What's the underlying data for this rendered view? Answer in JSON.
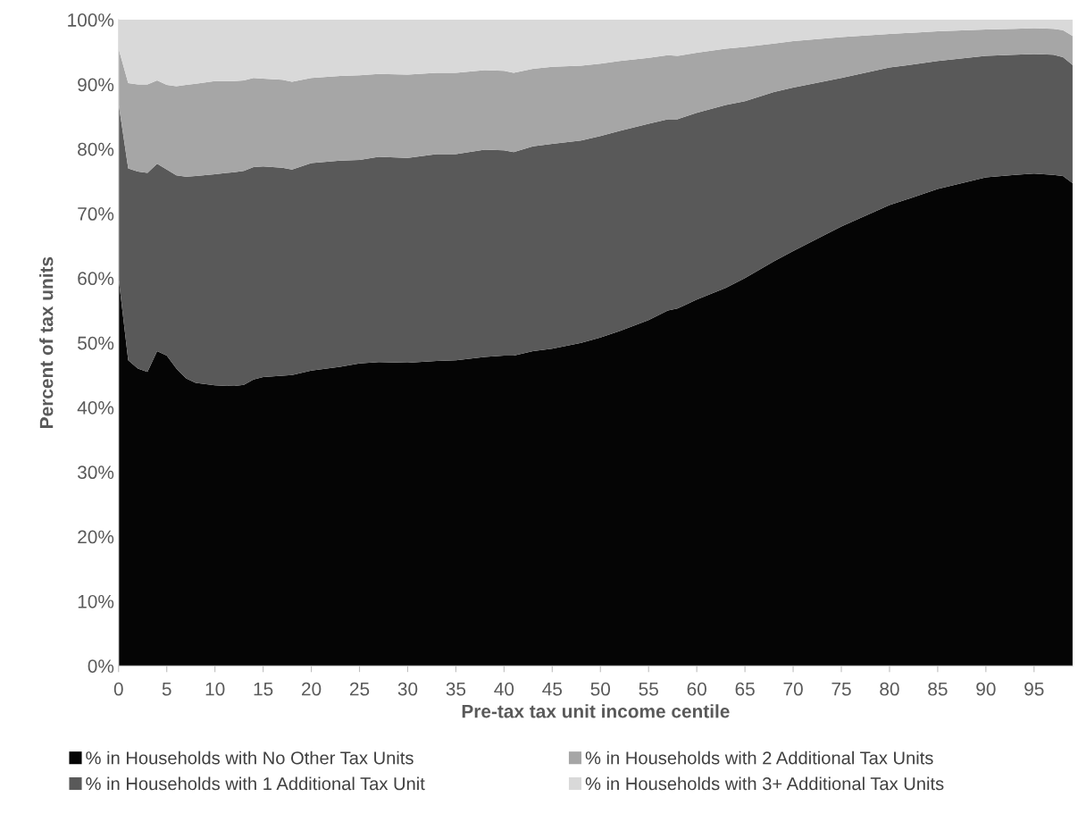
{
  "chart_data": {
    "type": "area",
    "stacked": true,
    "xlabel": "Pre-tax tax unit income centile",
    "ylabel": "Percent of tax units",
    "x": [
      0,
      1,
      2,
      3,
      4,
      5,
      6,
      7,
      8,
      10,
      12,
      13,
      14,
      15,
      17,
      18,
      20,
      23,
      25,
      27,
      30,
      33,
      35,
      38,
      40,
      41,
      43,
      45,
      48,
      50,
      52,
      55,
      57,
      58,
      60,
      63,
      65,
      68,
      70,
      75,
      80,
      85,
      90,
      93,
      95,
      97,
      98,
      99
    ],
    "series": [
      {
        "name": "% in Households with No Other Tax Units",
        "color": "#050505",
        "values": [
          60,
          47.3,
          46,
          45.5,
          48.7,
          48,
          46,
          44.5,
          43.8,
          43.4,
          43.3,
          43.5,
          44.3,
          44.7,
          44.9,
          45,
          45.7,
          46.3,
          46.8,
          47,
          46.9,
          47.2,
          47.3,
          47.8,
          48,
          48,
          48.7,
          49.1,
          50,
          50.8,
          51.8,
          53.5,
          55,
          55.3,
          56.7,
          58.5,
          60,
          62.6,
          64.2,
          68,
          71.3,
          73.8,
          75.6,
          76,
          76.2,
          76,
          75.8,
          74.7
        ]
      },
      {
        "name": "% in Households with 1 Additional Tax Unit",
        "color": "#595959",
        "values": [
          27,
          29.7,
          30.5,
          30.8,
          29,
          28.8,
          29.9,
          31.2,
          32,
          32.7,
          33.1,
          33.1,
          32.9,
          32.6,
          32.2,
          31.8,
          32.1,
          31.9,
          31.5,
          31.8,
          31.7,
          32,
          31.9,
          32.1,
          31.8,
          31.5,
          31.7,
          31.7,
          31.3,
          31.2,
          31,
          30.4,
          29.6,
          29.3,
          28.9,
          28.3,
          27.4,
          26.2,
          25.3,
          23,
          21.3,
          19.8,
          18.8,
          18.6,
          18.5,
          18.6,
          18.4,
          18.3
        ]
      },
      {
        "name": "% in Households with 2 Additional Tax Units",
        "color": "#a6a6a6",
        "values": [
          8.5,
          13.2,
          13.5,
          13.7,
          12.9,
          13.1,
          13.8,
          14.2,
          14.3,
          14.4,
          14.1,
          14,
          13.8,
          13.6,
          13.6,
          13.6,
          13.2,
          13.1,
          13.1,
          12.8,
          12.9,
          12.6,
          12.6,
          12.3,
          12.3,
          12.3,
          12,
          11.9,
          11.6,
          11.2,
          10.8,
          10.2,
          9.9,
          9.8,
          9.3,
          8.7,
          8.4,
          7.5,
          7.2,
          6.3,
          5.2,
          4.6,
          4.1,
          4,
          4,
          4,
          4.2,
          4.5
        ]
      },
      {
        "name": "% in Households with 3+ Additional Tax Units",
        "color": "#d9d9d9",
        "values": [
          4.5,
          9.8,
          10,
          10,
          9.4,
          10.1,
          10.3,
          10.1,
          9.9,
          9.5,
          9.5,
          9.4,
          9,
          9.1,
          9.3,
          9.6,
          9,
          8.7,
          8.6,
          8.4,
          8.5,
          8.2,
          8.2,
          7.8,
          7.9,
          8.2,
          7.6,
          7.3,
          7.1,
          6.8,
          6.4,
          5.9,
          5.5,
          5.6,
          5.1,
          4.5,
          4.2,
          3.7,
          3.3,
          2.7,
          2.2,
          1.8,
          1.5,
          1.4,
          1.3,
          1.4,
          1.6,
          2.5
        ]
      }
    ],
    "xlim": [
      0,
      99
    ],
    "xticks": [
      0,
      5,
      10,
      15,
      20,
      25,
      30,
      35,
      40,
      45,
      50,
      55,
      60,
      65,
      70,
      75,
      80,
      85,
      90,
      95
    ],
    "ylim": [
      0,
      100
    ],
    "yticks": [
      {
        "value": 0,
        "label": "0%"
      },
      {
        "value": 10,
        "label": "10%"
      },
      {
        "value": 20,
        "label": "20%"
      },
      {
        "value": 30,
        "label": "30%"
      },
      {
        "value": 40,
        "label": "40%"
      },
      {
        "value": 50,
        "label": "50%"
      },
      {
        "value": 60,
        "label": "60%"
      },
      {
        "value": 70,
        "label": "70%"
      },
      {
        "value": 80,
        "label": "80%"
      },
      {
        "value": 90,
        "label": "90%"
      },
      {
        "value": 100,
        "label": "100%"
      }
    ],
    "grid": false,
    "legend": "bottom"
  }
}
